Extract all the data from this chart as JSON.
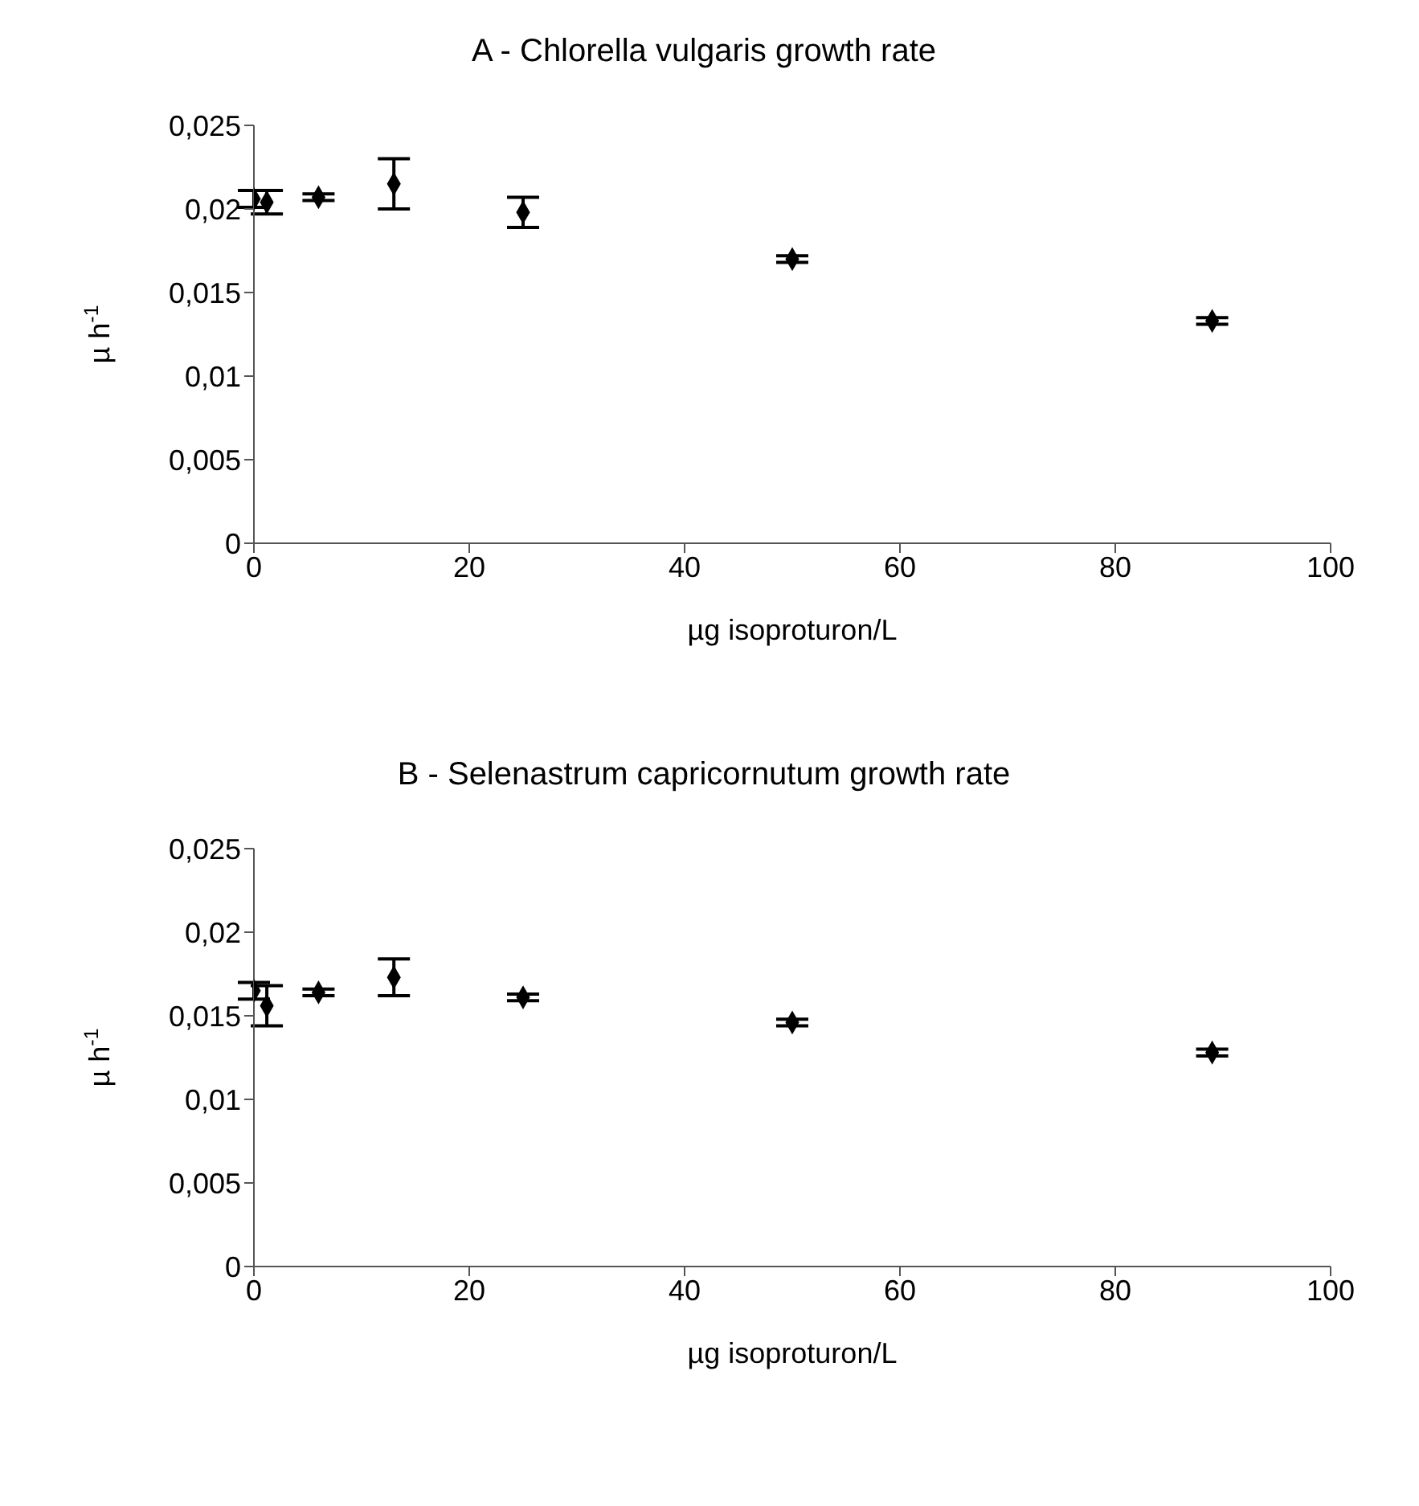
{
  "chart_data": [
    {
      "type": "scatter",
      "title": "A - Chlorella vulgaris growth rate",
      "xlabel": "µg isoproturon/L",
      "ylabel": "µ h$^{-1}$",
      "x": [
        0,
        1.2,
        6,
        13,
        25,
        50,
        89
      ],
      "values": [
        0.0206,
        0.0204,
        0.0207,
        0.0215,
        0.0198,
        0.017,
        0.0133
      ],
      "errors": [
        0.0005,
        0.0007,
        0.0002,
        0.0015,
        0.0009,
        0.0002,
        0.0002
      ],
      "color": "#000000",
      "marker": "diamond",
      "xlim": [
        0,
        100
      ],
      "xticks": [
        0,
        20,
        40,
        60,
        80,
        100
      ],
      "ylim": [
        0,
        0.025
      ],
      "yticks": [
        {
          "value": 0,
          "label": "0"
        },
        {
          "value": 0.005,
          "label": "0,005"
        },
        {
          "value": 0.01,
          "label": "0,01"
        },
        {
          "value": 0.015,
          "label": "0,015"
        },
        {
          "value": 0.02,
          "label": "0,02"
        },
        {
          "value": 0.025,
          "label": "0,025"
        }
      ],
      "grid": false,
      "legend": false
    },
    {
      "type": "scatter",
      "title": "B - Selenastrum capricornutum growth rate",
      "xlabel": "µg isoproturon/L",
      "ylabel": "µ h$^{-1}$",
      "x": [
        0,
        1.2,
        6,
        13,
        25,
        50,
        89
      ],
      "values": [
        0.0165,
        0.0156,
        0.0164,
        0.0173,
        0.0161,
        0.0146,
        0.0128
      ],
      "errors": [
        0.0005,
        0.0012,
        0.0002,
        0.0011,
        0.0002,
        0.0002,
        0.0002
      ],
      "color": "#000000",
      "marker": "diamond",
      "xlim": [
        0,
        100
      ],
      "xticks": [
        0,
        20,
        40,
        60,
        80,
        100
      ],
      "ylim": [
        0,
        0.025
      ],
      "yticks": [
        {
          "value": 0,
          "label": "0"
        },
        {
          "value": 0.005,
          "label": "0,005"
        },
        {
          "value": 0.01,
          "label": "0,01"
        },
        {
          "value": 0.015,
          "label": "0,015"
        },
        {
          "value": 0.02,
          "label": "0,02"
        },
        {
          "value": 0.025,
          "label": "0,025"
        }
      ],
      "grid": false,
      "legend": false
    }
  ]
}
